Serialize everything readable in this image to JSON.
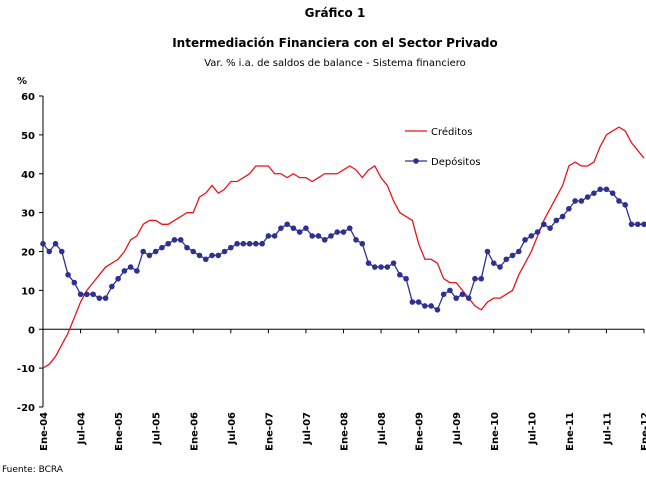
{
  "chart_data": {
    "type": "line",
    "title": "Gráfico 1",
    "subtitle": "Intermediación Financiera con el Sector Privado",
    "description": "Var. % i.a. de saldos de balance - Sistema financiero",
    "y_label": "%",
    "source": "Fuente: BCRA",
    "categories": [
      "Ene-04",
      null,
      null,
      null,
      null,
      null,
      "Jul-04",
      null,
      null,
      null,
      null,
      null,
      "Ene-05",
      null,
      null,
      null,
      null,
      null,
      "Jul-05",
      null,
      null,
      null,
      null,
      null,
      "Ene-06",
      null,
      null,
      null,
      null,
      null,
      "Jul-06",
      null,
      null,
      null,
      null,
      null,
      "Ene-07",
      null,
      null,
      null,
      null,
      null,
      "Jul-07",
      null,
      null,
      null,
      null,
      null,
      "Ene-08",
      null,
      null,
      null,
      null,
      null,
      "Jul-08",
      null,
      null,
      null,
      null,
      null,
      "Ene-09",
      null,
      null,
      null,
      null,
      null,
      "Jul-09",
      null,
      null,
      null,
      null,
      null,
      "Ene-10",
      null,
      null,
      null,
      null,
      null,
      "Jul-10",
      null,
      null,
      null,
      null,
      null,
      "Ene-11",
      null,
      null,
      null,
      null,
      null,
      "Jul-11",
      null,
      null,
      null,
      null,
      null,
      "Ene-12"
    ],
    "series": [
      {
        "name": "Créditos",
        "color": "#e8141c",
        "marker": false,
        "values": [
          -10,
          -9,
          -7,
          -4,
          -1,
          3,
          7,
          10,
          12,
          14,
          16,
          17,
          18,
          20,
          23,
          24,
          27,
          28,
          28,
          27,
          27,
          28,
          29,
          30,
          30,
          34,
          35,
          37,
          35,
          36,
          38,
          38,
          39,
          40,
          42,
          42,
          42,
          40,
          40,
          39,
          40,
          39,
          39,
          38,
          39,
          40,
          40,
          40,
          41,
          42,
          41,
          39,
          41,
          42,
          39,
          37,
          33,
          30,
          29,
          28,
          22,
          18,
          18,
          17,
          13,
          12,
          12,
          10,
          8,
          6,
          5,
          7,
          8,
          8,
          9,
          10,
          14,
          17,
          20,
          24,
          28,
          31,
          34,
          37,
          42,
          43,
          42,
          42,
          43,
          47,
          50,
          51,
          52,
          51,
          48,
          46,
          44
        ]
      },
      {
        "name": "Depósitos",
        "color": "#2e3192",
        "marker": true,
        "values": [
          22,
          20,
          22,
          20,
          14,
          12,
          9,
          9,
          9,
          8,
          8,
          11,
          13,
          15,
          16,
          15,
          20,
          19,
          20,
          21,
          22,
          23,
          23,
          21,
          20,
          19,
          18,
          19,
          19,
          20,
          21,
          22,
          22,
          22,
          22,
          22,
          24,
          24,
          26,
          27,
          26,
          25,
          26,
          24,
          24,
          23,
          24,
          25,
          25,
          26,
          23,
          22,
          17,
          16,
          16,
          16,
          17,
          14,
          13,
          7,
          7,
          6,
          6,
          5,
          9,
          10,
          8,
          9,
          8,
          13,
          13,
          20,
          17,
          16,
          18,
          19,
          20,
          23,
          24,
          25,
          27,
          26,
          28,
          29,
          31,
          33,
          33,
          34,
          35,
          36,
          36,
          35,
          33,
          32,
          27,
          27,
          27
        ]
      }
    ],
    "ylim": [
      -20,
      60
    ],
    "yticks": [
      -20,
      -10,
      0,
      10,
      20,
      30,
      40,
      50,
      60
    ],
    "legend": "upper right",
    "grid": false
  }
}
